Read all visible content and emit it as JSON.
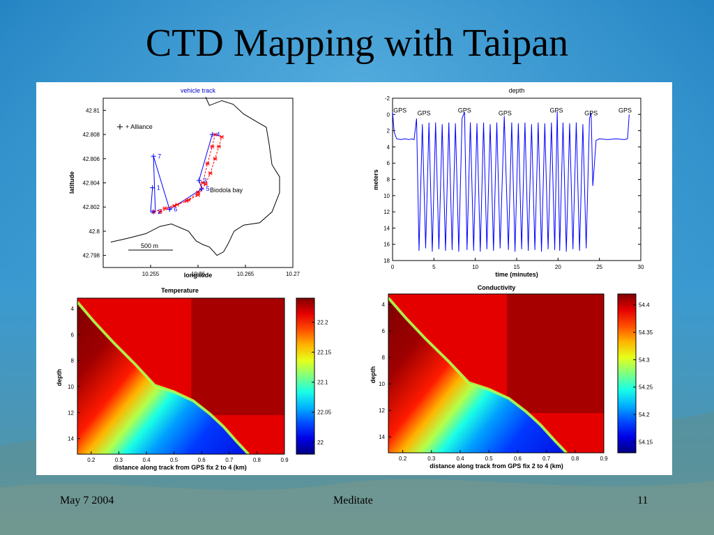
{
  "slide": {
    "title": "CTD Mapping with Taipan",
    "footer_date": "May 7 2004",
    "footer_center": "Meditate",
    "footer_page": "11"
  },
  "colors": {
    "background_top": "#1e7fc0",
    "background_bottom": "#5c9ab0",
    "track_blue": "#0000ff",
    "track_red": "#ff0000"
  },
  "chart_data": [
    {
      "type": "line",
      "id": "vehicle-track",
      "title": "vehicle track",
      "xlabel": "longitude",
      "ylabel": "latitude",
      "xlim": [
        10.25,
        10.27
      ],
      "ylim": [
        42.797,
        42.811
      ],
      "xticks": [
        "10.255",
        "10.26",
        "10.265",
        "10.27"
      ],
      "yticks": [
        "42.81",
        "42.808",
        "42.806",
        "42.804",
        "42.802",
        "42.8",
        "42.798"
      ],
      "annotations": [
        "+ Alliance",
        "Biodola bay",
        "500 m"
      ],
      "waypoints": [
        {
          "label": "1",
          "x": 10.2552,
          "y": 42.8036
        },
        {
          "label": "2",
          "x": 10.2553,
          "y": 42.8016
        },
        {
          "label": "3",
          "x": 10.2601,
          "y": 42.8042
        },
        {
          "label": "4",
          "x": 10.2615,
          "y": 42.808
        },
        {
          "label": "5",
          "x": 10.2604,
          "y": 42.8035
        },
        {
          "label": "6",
          "x": 10.257,
          "y": 42.8018
        },
        {
          "label": "7",
          "x": 10.2553,
          "y": 42.8062
        }
      ],
      "coastline": [
        [
          10.2608,
          42.8111
        ],
        [
          10.2612,
          42.8104
        ],
        [
          10.2625,
          42.8108
        ],
        [
          10.2637,
          42.8105
        ],
        [
          10.2648,
          42.8097
        ],
        [
          10.2663,
          42.809
        ],
        [
          10.2672,
          42.8086
        ],
        [
          10.2675,
          42.8072
        ],
        [
          10.2678,
          42.8055
        ],
        [
          10.2686,
          42.8045
        ],
        [
          10.2686,
          42.8032
        ],
        [
          10.2678,
          42.8016
        ],
        [
          10.2665,
          42.8007
        ],
        [
          10.2648,
          42.8005
        ],
        [
          10.2638,
          42.8
        ],
        [
          10.2632,
          42.799
        ],
        [
          10.2627,
          42.7983
        ],
        [
          10.262,
          42.798
        ],
        [
          10.2612,
          42.7987
        ],
        [
          10.2605,
          42.7989
        ],
        [
          10.2598,
          42.7992
        ],
        [
          10.259,
          42.8
        ],
        [
          10.2572,
          42.8006
        ],
        [
          10.256,
          42.8004
        ],
        [
          10.2545,
          42.7998
        ],
        [
          10.2525,
          42.7994
        ],
        [
          10.2508,
          42.7991
        ]
      ],
      "series": [
        {
          "color": "blue",
          "points": [
            [
              10.2552,
              42.8036
            ],
            [
              10.255,
              42.8016
            ],
            [
              10.2555,
              42.8016
            ],
            [
              10.2553,
              42.8062
            ],
            [
              10.257,
              42.8018
            ],
            [
              10.2604,
              42.8035
            ],
            [
              10.2601,
              42.8042
            ],
            [
              10.2615,
              42.808
            ],
            [
              10.2621,
              42.808
            ]
          ]
        },
        {
          "color": "red",
          "points": [
            [
              10.2553,
              42.8016
            ],
            [
              10.2565,
              42.8019
            ],
            [
              10.2578,
              42.8022
            ],
            [
              10.259,
              42.8026
            ],
            [
              10.26,
              42.8032
            ],
            [
              10.2605,
              42.804
            ],
            [
              10.261,
              42.8056
            ],
            [
              10.2615,
              42.807
            ],
            [
              10.2618,
              42.808
            ],
            [
              10.2625,
              42.8078
            ],
            [
              10.2622,
              42.807
            ],
            [
              10.2618,
              42.806
            ],
            [
              10.2613,
              42.8048
            ],
            [
              10.2608,
              42.8039
            ],
            [
              10.26,
              42.803
            ],
            [
              10.2588,
              42.8025
            ],
            [
              10.2575,
              42.8021
            ],
            [
              10.256,
              42.8016
            ]
          ]
        }
      ]
    },
    {
      "type": "line",
      "id": "depth",
      "title": "depth",
      "xlabel": "time (minutes)",
      "ylabel": "meters",
      "xlim": [
        0,
        30
      ],
      "ylim": [
        -2,
        18
      ],
      "y_reversed": true,
      "xticks": [
        "0",
        "5",
        "10",
        "15",
        "20",
        "25",
        "30"
      ],
      "yticks": [
        "-2",
        "0",
        "2",
        "4",
        "6",
        "8",
        "10",
        "12",
        "14",
        "16",
        "18"
      ],
      "gps_markers": [
        {
          "label": "GPS",
          "x": 0.9
        },
        {
          "label": "GPS",
          "x": 3.8
        },
        {
          "label": "GPS",
          "x": 8.7
        },
        {
          "label": "GPS",
          "x": 13.6
        },
        {
          "label": "GPS",
          "x": 19.8
        },
        {
          "label": "GPS",
          "x": 24.0
        },
        {
          "label": "GPS",
          "x": 28.1
        }
      ],
      "series": [
        {
          "name": "",
          "x": [
            0,
            0.2,
            0.5,
            1.0,
            1.5,
            2.0,
            2.3,
            2.6,
            2.9,
            3.2,
            3.6,
            4.0,
            4.4,
            4.8,
            5.2,
            5.6,
            6.0,
            6.4,
            6.8,
            7.2,
            7.6,
            8.0,
            8.4,
            8.7,
            9.0,
            9.4,
            9.8,
            10.2,
            10.6,
            11.0,
            11.4,
            11.8,
            12.2,
            12.6,
            13.0,
            13.5,
            14.0,
            14.4,
            14.8,
            15.2,
            15.6,
            16.0,
            16.4,
            16.8,
            17.2,
            17.6,
            18.0,
            18.4,
            18.8,
            19.2,
            19.6,
            19.9,
            20.2,
            20.6,
            21.0,
            21.4,
            21.8,
            22.2,
            22.6,
            23.0,
            23.4,
            23.8,
            24.0,
            24.2,
            24.6,
            25.0,
            26.0,
            27.0,
            28.0,
            28.4,
            28.6
          ],
          "y": [
            -0.3,
            2.2,
            3.0,
            3.1,
            3.0,
            3.1,
            3.0,
            3.1,
            0.5,
            16.8,
            1.2,
            16.5,
            1.0,
            16.9,
            1.0,
            16.6,
            1.2,
            16.8,
            1.0,
            16.7,
            1.1,
            16.9,
            0.5,
            -0.3,
            16.7,
            1.0,
            16.8,
            1.1,
            16.9,
            1.0,
            16.6,
            1.2,
            16.8,
            1.0,
            16.5,
            0.2,
            16.7,
            1.0,
            16.9,
            1.1,
            16.6,
            1.0,
            16.8,
            1.2,
            16.7,
            1.0,
            16.9,
            1.1,
            16.6,
            1.0,
            16.7,
            -0.4,
            16.8,
            1.0,
            16.9,
            1.1,
            16.6,
            1.0,
            16.8,
            1.2,
            16.5,
            0.5,
            -0.2,
            8.8,
            3.2,
            3.0,
            3.1,
            3.0,
            3.1,
            3.0,
            0.0
          ]
        }
      ]
    },
    {
      "type": "heatmap",
      "id": "temperature",
      "title": "Temperature",
      "xlabel": "distance along track from GPS fix 2 to 4 (km)",
      "ylabel": "depth",
      "xlim": [
        0.15,
        0.9
      ],
      "ylim": [
        3.2,
        15.2
      ],
      "y_reversed": true,
      "xticks": [
        "0.2",
        "0.3",
        "0.4",
        "0.5",
        "0.6",
        "0.7",
        "0.8",
        "0.9"
      ],
      "yticks": [
        "4",
        "6",
        "8",
        "10",
        "12",
        "14"
      ],
      "colorbar_ticks": [
        "22",
        "22.05",
        "22.1",
        "22.15",
        "22.2"
      ],
      "colorbar_range": [
        21.98,
        22.24
      ],
      "colormap": "jet",
      "front_line": [
        [
          0.15,
          3.5
        ],
        [
          0.21,
          5.0
        ],
        [
          0.28,
          6.6
        ],
        [
          0.36,
          8.3
        ],
        [
          0.43,
          9.9
        ],
        [
          0.5,
          10.4
        ],
        [
          0.57,
          11.1
        ],
        [
          0.63,
          12.1
        ],
        [
          0.68,
          13.1
        ],
        [
          0.73,
          14.3
        ],
        [
          0.77,
          15.2
        ]
      ]
    },
    {
      "type": "heatmap",
      "id": "conductivity",
      "title": "Conductivity",
      "xlabel": "distance along track from GPS fix 2 to 4 (km)",
      "ylabel": "depth",
      "xlim": [
        0.15,
        0.9
      ],
      "ylim": [
        3.2,
        15.2
      ],
      "y_reversed": true,
      "xticks": [
        "0.2",
        "0.3",
        "0.4",
        "0.5",
        "0.6",
        "0.7",
        "0.8",
        "0.9"
      ],
      "yticks": [
        "4",
        "6",
        "8",
        "10",
        "12",
        "14"
      ],
      "colorbar_ticks": [
        "54.15",
        "54.2",
        "54.25",
        "54.3",
        "54.35",
        "54.4"
      ],
      "colorbar_range": [
        54.13,
        54.42
      ],
      "colormap": "jet",
      "front_line": [
        [
          0.15,
          3.5
        ],
        [
          0.21,
          5.0
        ],
        [
          0.28,
          6.6
        ],
        [
          0.36,
          8.3
        ],
        [
          0.43,
          9.9
        ],
        [
          0.5,
          10.4
        ],
        [
          0.57,
          11.1
        ],
        [
          0.63,
          12.1
        ],
        [
          0.68,
          13.1
        ],
        [
          0.73,
          14.3
        ],
        [
          0.77,
          15.2
        ]
      ]
    }
  ]
}
